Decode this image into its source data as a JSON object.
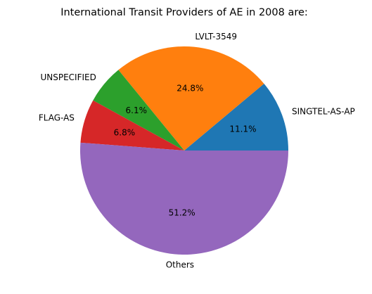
{
  "chart_data": {
    "type": "pie",
    "title": "International Transit Providers of AE in 2008  are:",
    "slices": [
      {
        "label": "SINGTEL-AS-AP",
        "value": 11.1,
        "pct_label": "11.1%",
        "color": "#1f77b4"
      },
      {
        "label": "LVLT-3549",
        "value": 24.8,
        "pct_label": "24.8%",
        "color": "#ff7f0e"
      },
      {
        "label": "UNSPECIFIED",
        "value": 6.1,
        "pct_label": "6.1%",
        "color": "#2ca02c"
      },
      {
        "label": "FLAG-AS",
        "value": 6.8,
        "pct_label": "6.8%",
        "color": "#d62728"
      },
      {
        "label": "Others",
        "value": 51.2,
        "pct_label": "51.2%",
        "color": "#9467bd"
      }
    ],
    "start_angle_deg": 0,
    "direction": "counterclockwise"
  }
}
